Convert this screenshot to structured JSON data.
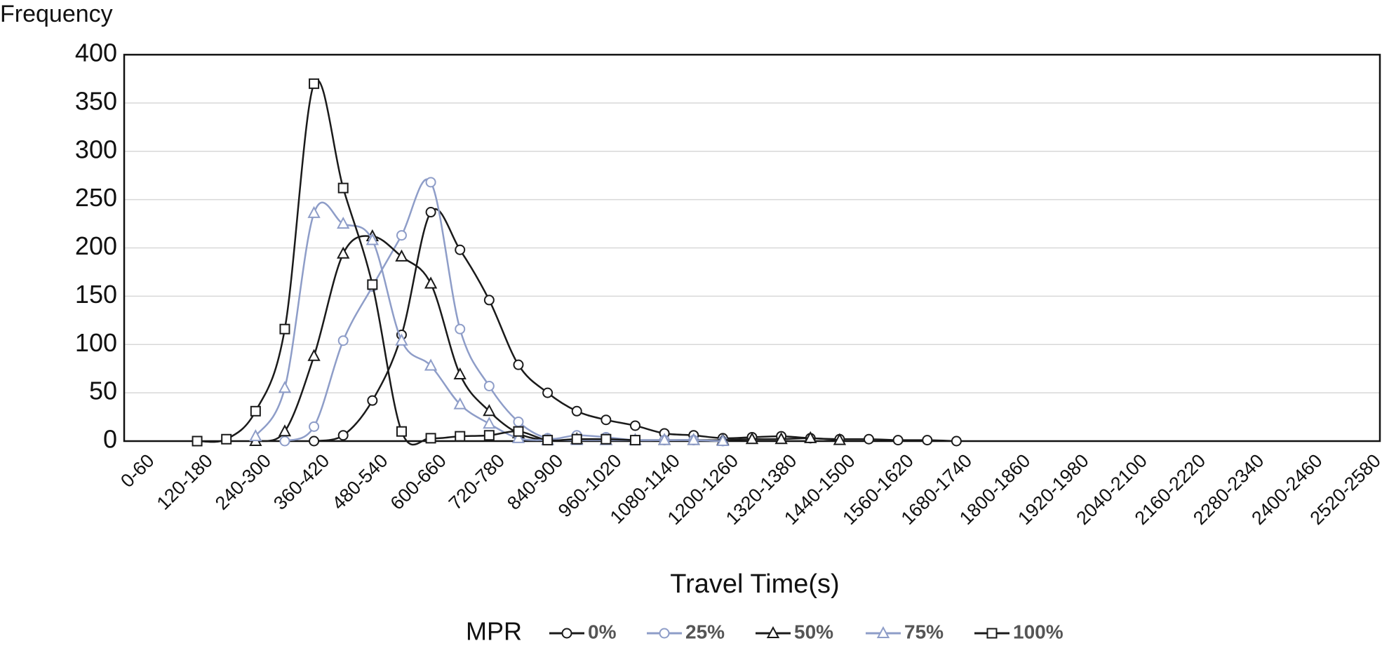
{
  "chart_data": {
    "type": "line",
    "y_label": "Frequency",
    "x_label": "Travel Time(s)",
    "legend_title": "MPR",
    "categories": [
      "0-60",
      null,
      "120-180",
      null,
      "240-300",
      null,
      "360-420",
      null,
      "480-540",
      null,
      "600-660",
      null,
      "720-780",
      null,
      "840-900",
      null,
      "960-1020",
      null,
      "1080-1140",
      null,
      "1200-1260",
      null,
      "1320-1380",
      null,
      "1440-1500",
      null,
      "1560-1620",
      null,
      "1680-1740",
      null,
      "1800-1860",
      null,
      "1920-1980",
      null,
      "2040-2100",
      null,
      "2160-2220",
      null,
      "2280-2340",
      null,
      "2400-2460",
      null,
      "2520-2580"
    ],
    "ylim": [
      0,
      400
    ],
    "yticks": [
      0,
      50,
      100,
      150,
      200,
      250,
      300,
      350,
      400
    ],
    "grid": true,
    "series": [
      {
        "name": "0%",
        "color": "#1a1a1a",
        "marker": "circle",
        "values": [
          null,
          null,
          null,
          null,
          null,
          null,
          0,
          6,
          42,
          110,
          237,
          198,
          146,
          79,
          50,
          31,
          22,
          16,
          8,
          6,
          3,
          4,
          5,
          3,
          2,
          2,
          1,
          1,
          0,
          null,
          null,
          null,
          null,
          null,
          null,
          null,
          null,
          null,
          null,
          null,
          null,
          null,
          null
        ]
      },
      {
        "name": "25%",
        "color": "#8e9dc8",
        "marker": "circle",
        "values": [
          null,
          null,
          null,
          null,
          null,
          0,
          15,
          104,
          160,
          213,
          268,
          116,
          57,
          20,
          3,
          6,
          4,
          1,
          1,
          1,
          0,
          null,
          null,
          null,
          null,
          null,
          null,
          null,
          null,
          null,
          null,
          null,
          null,
          null,
          null,
          null,
          null,
          null,
          null,
          null,
          null,
          null,
          null
        ]
      },
      {
        "name": "50%",
        "color": "#1a1a1a",
        "marker": "triangle",
        "values": [
          null,
          null,
          null,
          null,
          0,
          10,
          88,
          194,
          212,
          191,
          163,
          69,
          31,
          8,
          1,
          2,
          1,
          1,
          1,
          1,
          1,
          2,
          2,
          3,
          1,
          null,
          null,
          null,
          null,
          null,
          null,
          null,
          null,
          null,
          null,
          null,
          null,
          null,
          null,
          null,
          null,
          null,
          null
        ]
      },
      {
        "name": "75%",
        "color": "#8e9dc8",
        "marker": "triangle",
        "values": [
          null,
          null,
          null,
          null,
          5,
          55,
          236,
          225,
          208,
          104,
          78,
          38,
          18,
          3,
          1,
          1,
          1,
          1,
          1,
          1,
          0,
          null,
          null,
          null,
          null,
          null,
          null,
          null,
          null,
          null,
          null,
          null,
          null,
          null,
          null,
          null,
          null,
          null,
          null,
          null,
          null,
          null,
          null
        ]
      },
      {
        "name": "100%",
        "color": "#1a1a1a",
        "marker": "square",
        "values": [
          null,
          null,
          0,
          2,
          31,
          116,
          370,
          262,
          162,
          10,
          3,
          5,
          6,
          10,
          1,
          2,
          2,
          1,
          null,
          null,
          null,
          null,
          null,
          null,
          null,
          null,
          null,
          null,
          null,
          null,
          null,
          null,
          null,
          null,
          null,
          null,
          null,
          null,
          null,
          null,
          null,
          null,
          null
        ]
      }
    ]
  }
}
